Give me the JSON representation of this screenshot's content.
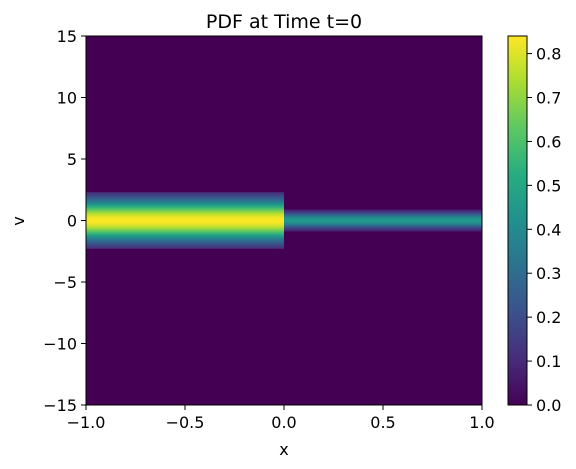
{
  "chart_data": {
    "type": "heatmap",
    "title": "PDF at Time t=0",
    "xlabel": "x",
    "ylabel": "v",
    "xlim": [
      -1.0,
      1.0
    ],
    "ylim": [
      -15,
      15
    ],
    "grid": false,
    "colormap": "viridis",
    "x_ticks": [
      "−1.0",
      "−0.5",
      "0.0",
      "0.5",
      "1.0"
    ],
    "x_tick_values": [
      -1.0,
      -0.5,
      0.0,
      0.5,
      1.0
    ],
    "y_ticks": [
      "−15",
      "−10",
      "−5",
      "0",
      "5",
      "10",
      "15"
    ],
    "y_tick_values": [
      -15,
      -10,
      -5,
      0,
      5,
      10,
      15
    ],
    "colorbar": {
      "range": [
        0.0,
        0.84
      ],
      "ticks": [
        "0.0",
        "0.1",
        "0.2",
        "0.3",
        "0.4",
        "0.5",
        "0.6",
        "0.7",
        "0.8"
      ],
      "tick_values": [
        0.0,
        0.1,
        0.2,
        0.3,
        0.4,
        0.5,
        0.6,
        0.7,
        0.8
      ]
    },
    "regions": [
      {
        "x_range": [
          -1.0,
          0.0
        ],
        "v_center": 0,
        "v_half_width": 2.3,
        "peak": 0.84
      },
      {
        "x_range": [
          0.0,
          1.0
        ],
        "v_center": 0,
        "v_half_width": 0.9,
        "peak": 0.45
      }
    ]
  }
}
